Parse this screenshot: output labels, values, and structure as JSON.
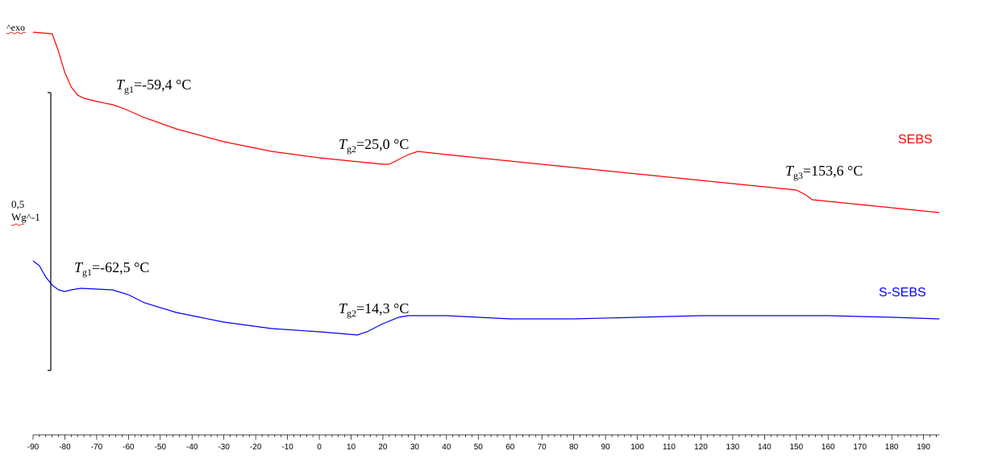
{
  "chart_data": {
    "type": "line",
    "title": "",
    "xlabel": "",
    "ylabel": "",
    "xlim": [
      -90,
      195
    ],
    "x_ticks": [
      -90,
      -80,
      -70,
      -60,
      -50,
      -40,
      -30,
      -20,
      -10,
      0,
      10,
      20,
      30,
      40,
      50,
      60,
      70,
      80,
      90,
      100,
      110,
      120,
      130,
      140,
      150,
      160,
      170,
      180,
      190
    ],
    "exo_label": "^exo",
    "scale_bar": {
      "value": "0,5",
      "unit": "Wg^-1"
    },
    "series": [
      {
        "name": "SEBS",
        "color": "#ff0000",
        "x": [
          -90,
          -84,
          -82,
          -80,
          -78,
          -76,
          -74,
          -70,
          -65,
          -62,
          -55,
          -45,
          -30,
          -15,
          0,
          10,
          20,
          22,
          25,
          28,
          31,
          40,
          60,
          80,
          100,
          120,
          140,
          150,
          153,
          155,
          160,
          170,
          180,
          195
        ],
        "y": [
          0.0,
          -0.01,
          -0.12,
          -0.25,
          -0.34,
          -0.39,
          -0.41,
          -0.43,
          -0.45,
          -0.47,
          -0.53,
          -0.6,
          -0.68,
          -0.74,
          -0.78,
          -0.8,
          -0.82,
          -0.82,
          -0.79,
          -0.76,
          -0.74,
          -0.76,
          -0.8,
          -0.84,
          -0.88,
          -0.92,
          -0.96,
          -0.98,
          -1.01,
          -1.04,
          -1.05,
          -1.07,
          -1.09,
          -1.12
        ],
        "annotations": [
          {
            "label": "Tg1",
            "value": "=-59,4 °C"
          },
          {
            "label": "Tg2",
            "value": "=25,0 °C"
          },
          {
            "label": "Tg3",
            "value": "=153,6 °C"
          }
        ]
      },
      {
        "name": "S-SEBS",
        "color": "#0000ff",
        "x": [
          -90,
          -88,
          -86,
          -84,
          -82,
          -80,
          -78,
          -75,
          -65,
          -60,
          -55,
          -45,
          -30,
          -15,
          0,
          12,
          15,
          20,
          25,
          28,
          40,
          60,
          80,
          100,
          120,
          140,
          160,
          180,
          195
        ],
        "y": [
          -1.42,
          -1.45,
          -1.52,
          -1.57,
          -1.6,
          -1.61,
          -1.6,
          -1.59,
          -1.6,
          -1.63,
          -1.68,
          -1.74,
          -1.8,
          -1.84,
          -1.86,
          -1.88,
          -1.86,
          -1.81,
          -1.77,
          -1.76,
          -1.76,
          -1.78,
          -1.78,
          -1.77,
          -1.76,
          -1.76,
          -1.76,
          -1.77,
          -1.78
        ],
        "annotations": [
          {
            "label": "Tg1",
            "value": "=-62,5 °C"
          },
          {
            "label": "Tg2",
            "value": "=14,3 °C"
          }
        ]
      }
    ]
  }
}
